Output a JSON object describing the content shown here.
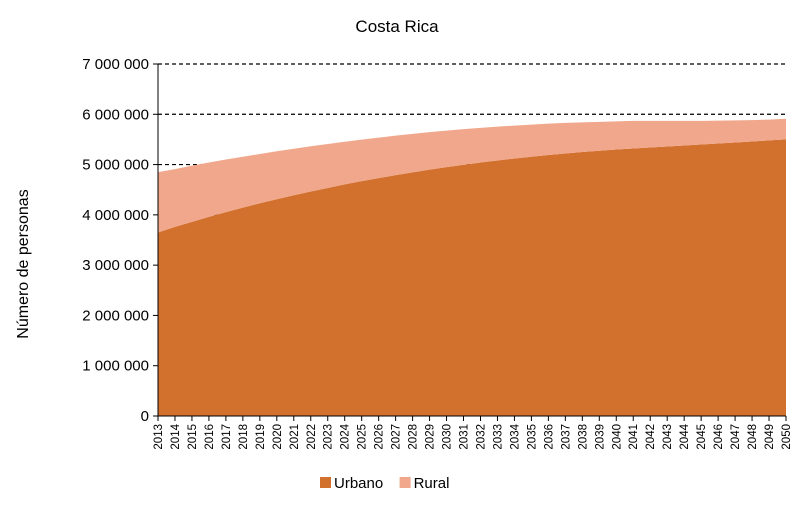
{
  "chart_data": {
    "type": "area",
    "stacked": true,
    "title": "Costa Rica",
    "xlabel": "",
    "ylabel": "Número de personas",
    "ylim": [
      0,
      7000000
    ],
    "yticks": [
      0,
      1000000,
      2000000,
      3000000,
      4000000,
      5000000,
      6000000,
      7000000
    ],
    "ytick_labels": [
      "0",
      "1 000 000",
      "2 000 000",
      "3 000 000",
      "4 000 000",
      "5 000 000",
      "6 000 000",
      "7 000 000"
    ],
    "grid": "dashed horizontal",
    "legend_position": "bottom",
    "x": [
      2013,
      2014,
      2015,
      2016,
      2017,
      2018,
      2019,
      2020,
      2021,
      2022,
      2023,
      2024,
      2025,
      2026,
      2027,
      2028,
      2029,
      2030,
      2031,
      2032,
      2033,
      2034,
      2035,
      2036,
      2037,
      2038,
      2039,
      2040,
      2041,
      2042,
      2043,
      2044,
      2045,
      2046,
      2047,
      2048,
      2049,
      2050
    ],
    "series": [
      {
        "name": "Urbano",
        "color": "#d2702d",
        "values": [
          3650000,
          3760000,
          3860000,
          3960000,
          4055000,
          4145000,
          4230000,
          4310000,
          4390000,
          4465000,
          4535000,
          4605000,
          4670000,
          4730000,
          4790000,
          4845000,
          4900000,
          4950000,
          4995000,
          5040000,
          5080000,
          5120000,
          5155000,
          5190000,
          5220000,
          5250000,
          5275000,
          5300000,
          5320000,
          5340000,
          5360000,
          5380000,
          5400000,
          5420000,
          5440000,
          5460000,
          5480000,
          5500000
        ]
      },
      {
        "name": "Rural",
        "color": "#f0a78b",
        "values": [
          1200000,
          1150000,
          1120000,
          1080000,
          1045000,
          1010000,
          980000,
          955000,
          925000,
          900000,
          875000,
          850000,
          825000,
          805000,
          785000,
          765000,
          745000,
          725000,
          710000,
          690000,
          675000,
          655000,
          640000,
          625000,
          610000,
          590000,
          575000,
          560000,
          550000,
          530000,
          510000,
          490000,
          470000,
          455000,
          440000,
          425000,
          415000,
          410000
        ]
      }
    ]
  }
}
